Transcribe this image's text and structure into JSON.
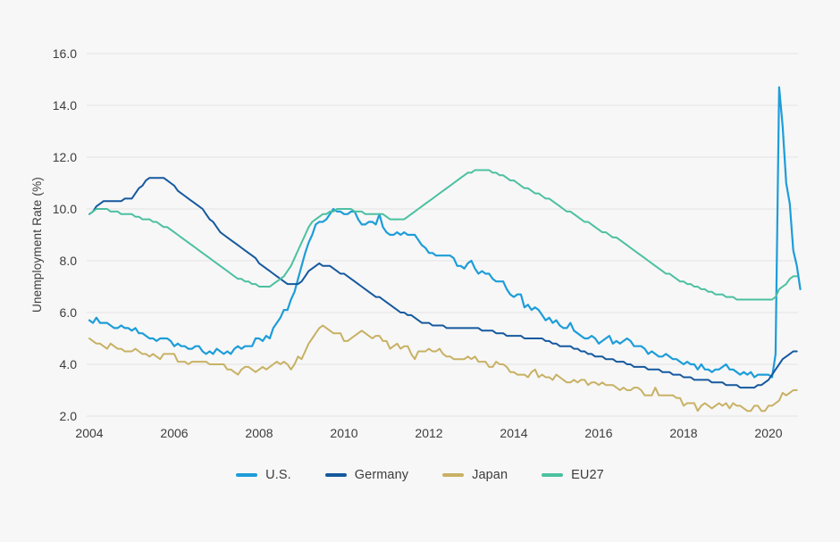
{
  "page": {
    "background": "#f7f7f7",
    "gridline_color": "#e3e3e3",
    "text_color": "#3c3c3c"
  },
  "chart_data": {
    "type": "line",
    "title": "",
    "xlabel": "",
    "ylabel": "Unemployment Rate (%)",
    "grid": "horizontal-only",
    "legend_position": "bottom-center",
    "x_start_year": 2004,
    "points_per_year": 12,
    "ylim": [
      2.0,
      16.0
    ],
    "xlim": [
      2004,
      2020.83
    ],
    "y_ticks": [
      {
        "value": 16,
        "label": "16.0"
      },
      {
        "value": 14,
        "label": "14.0"
      },
      {
        "value": 12,
        "label": "12.0"
      },
      {
        "value": 10,
        "label": "10.0"
      },
      {
        "value": 8,
        "label": "8.0"
      },
      {
        "value": 6,
        "label": "6.0"
      },
      {
        "value": 4,
        "label": "4.0"
      },
      {
        "value": 2,
        "label": "2.0"
      }
    ],
    "x_ticks": [
      {
        "value": 2004,
        "label": "2004"
      },
      {
        "value": 2006,
        "label": "2006"
      },
      {
        "value": 2008,
        "label": "2008"
      },
      {
        "value": 2010,
        "label": "2010"
      },
      {
        "value": 2012,
        "label": "2012"
      },
      {
        "value": 2014,
        "label": "2014"
      },
      {
        "value": 2016,
        "label": "2016"
      },
      {
        "value": 2018,
        "label": "2018"
      },
      {
        "value": 2020,
        "label": "2020"
      }
    ],
    "series": [
      {
        "name": "U.S.",
        "color": "#1d9dd9",
        "stroke_width": 2.2,
        "values": [
          5.7,
          5.6,
          5.8,
          5.6,
          5.6,
          5.6,
          5.5,
          5.4,
          5.4,
          5.5,
          5.4,
          5.4,
          5.3,
          5.4,
          5.2,
          5.2,
          5.1,
          5.0,
          5.0,
          4.9,
          5.0,
          5.0,
          5.0,
          4.9,
          4.7,
          4.8,
          4.7,
          4.7,
          4.6,
          4.6,
          4.7,
          4.7,
          4.5,
          4.4,
          4.5,
          4.4,
          4.6,
          4.5,
          4.4,
          4.5,
          4.4,
          4.6,
          4.7,
          4.6,
          4.7,
          4.7,
          4.7,
          5.0,
          5.0,
          4.9,
          5.1,
          5.0,
          5.4,
          5.6,
          5.8,
          6.1,
          6.1,
          6.5,
          6.8,
          7.3,
          7.8,
          8.3,
          8.7,
          9.0,
          9.4,
          9.5,
          9.5,
          9.6,
          9.8,
          10.0,
          9.9,
          9.9,
          9.8,
          9.8,
          9.9,
          9.9,
          9.6,
          9.4,
          9.4,
          9.5,
          9.5,
          9.4,
          9.8,
          9.3,
          9.1,
          9.0,
          9.0,
          9.1,
          9.0,
          9.1,
          9.0,
          9.0,
          9.0,
          8.8,
          8.6,
          8.5,
          8.3,
          8.3,
          8.2,
          8.2,
          8.2,
          8.2,
          8.2,
          8.1,
          7.8,
          7.8,
          7.7,
          7.9,
          8.0,
          7.7,
          7.5,
          7.6,
          7.5,
          7.5,
          7.3,
          7.2,
          7.2,
          7.2,
          6.9,
          6.7,
          6.6,
          6.7,
          6.7,
          6.2,
          6.3,
          6.1,
          6.2,
          6.1,
          5.9,
          5.7,
          5.8,
          5.6,
          5.7,
          5.5,
          5.4,
          5.4,
          5.6,
          5.3,
          5.2,
          5.1,
          5.0,
          5.0,
          5.1,
          5.0,
          4.8,
          4.9,
          5.0,
          5.1,
          4.8,
          4.9,
          4.8,
          4.9,
          5.0,
          4.9,
          4.7,
          4.7,
          4.7,
          4.6,
          4.4,
          4.5,
          4.4,
          4.3,
          4.3,
          4.4,
          4.3,
          4.2,
          4.2,
          4.1,
          4.0,
          4.1,
          4.0,
          4.0,
          3.8,
          4.0,
          3.8,
          3.8,
          3.7,
          3.8,
          3.8,
          3.9,
          4.0,
          3.8,
          3.8,
          3.7,
          3.6,
          3.7,
          3.6,
          3.7,
          3.5,
          3.6,
          3.6,
          3.6,
          3.6,
          3.5,
          4.4,
          14.7,
          13.2,
          11.0,
          10.2,
          8.4,
          7.8,
          6.9
        ]
      },
      {
        "name": "Germany",
        "color": "#15599e",
        "stroke_width": 2,
        "values": [
          9.8,
          9.9,
          10.1,
          10.2,
          10.3,
          10.3,
          10.3,
          10.3,
          10.3,
          10.3,
          10.4,
          10.4,
          10.4,
          10.6,
          10.8,
          10.9,
          11.1,
          11.2,
          11.2,
          11.2,
          11.2,
          11.2,
          11.1,
          11.0,
          10.9,
          10.7,
          10.6,
          10.5,
          10.4,
          10.3,
          10.2,
          10.1,
          10.0,
          9.8,
          9.6,
          9.5,
          9.3,
          9.1,
          9.0,
          8.9,
          8.8,
          8.7,
          8.6,
          8.5,
          8.4,
          8.3,
          8.2,
          8.1,
          7.9,
          7.8,
          7.7,
          7.6,
          7.5,
          7.4,
          7.3,
          7.2,
          7.1,
          7.1,
          7.1,
          7.1,
          7.2,
          7.4,
          7.6,
          7.7,
          7.8,
          7.9,
          7.8,
          7.8,
          7.8,
          7.7,
          7.6,
          7.5,
          7.5,
          7.4,
          7.3,
          7.2,
          7.1,
          7.0,
          6.9,
          6.8,
          6.7,
          6.6,
          6.6,
          6.5,
          6.4,
          6.3,
          6.2,
          6.1,
          6.0,
          6.0,
          5.9,
          5.9,
          5.8,
          5.7,
          5.6,
          5.6,
          5.6,
          5.5,
          5.5,
          5.5,
          5.5,
          5.4,
          5.4,
          5.4,
          5.4,
          5.4,
          5.4,
          5.4,
          5.4,
          5.4,
          5.4,
          5.3,
          5.3,
          5.3,
          5.3,
          5.2,
          5.2,
          5.2,
          5.1,
          5.1,
          5.1,
          5.1,
          5.1,
          5.0,
          5.0,
          5.0,
          5.0,
          5.0,
          5.0,
          4.9,
          4.9,
          4.8,
          4.8,
          4.7,
          4.7,
          4.7,
          4.7,
          4.6,
          4.6,
          4.5,
          4.5,
          4.4,
          4.4,
          4.3,
          4.3,
          4.3,
          4.2,
          4.2,
          4.2,
          4.1,
          4.1,
          4.1,
          4.0,
          4.0,
          3.9,
          3.9,
          3.9,
          3.9,
          3.8,
          3.8,
          3.8,
          3.8,
          3.7,
          3.7,
          3.7,
          3.6,
          3.6,
          3.6,
          3.5,
          3.5,
          3.5,
          3.4,
          3.4,
          3.4,
          3.4,
          3.4,
          3.3,
          3.3,
          3.3,
          3.3,
          3.2,
          3.2,
          3.2,
          3.2,
          3.1,
          3.1,
          3.1,
          3.1,
          3.1,
          3.2,
          3.2,
          3.3,
          3.4,
          3.6,
          3.8,
          4.0,
          4.2,
          4.3,
          4.4,
          4.5,
          4.5
        ]
      },
      {
        "name": "Japan",
        "color": "#c8b164",
        "stroke_width": 2,
        "values": [
          5.0,
          4.9,
          4.8,
          4.8,
          4.7,
          4.6,
          4.8,
          4.7,
          4.6,
          4.6,
          4.5,
          4.5,
          4.5,
          4.6,
          4.5,
          4.4,
          4.4,
          4.3,
          4.4,
          4.3,
          4.2,
          4.4,
          4.4,
          4.4,
          4.4,
          4.1,
          4.1,
          4.1,
          4.0,
          4.1,
          4.1,
          4.1,
          4.1,
          4.1,
          4.0,
          4.0,
          4.0,
          4.0,
          4.0,
          3.8,
          3.8,
          3.7,
          3.6,
          3.8,
          3.9,
          3.9,
          3.8,
          3.7,
          3.8,
          3.9,
          3.8,
          3.9,
          4.0,
          4.1,
          4.0,
          4.1,
          4.0,
          3.8,
          4.0,
          4.3,
          4.2,
          4.5,
          4.8,
          5.0,
          5.2,
          5.4,
          5.5,
          5.4,
          5.3,
          5.2,
          5.2,
          5.2,
          4.9,
          4.9,
          5.0,
          5.1,
          5.2,
          5.3,
          5.2,
          5.1,
          5.0,
          5.1,
          5.1,
          4.9,
          4.9,
          4.6,
          4.7,
          4.8,
          4.6,
          4.7,
          4.7,
          4.4,
          4.2,
          4.5,
          4.5,
          4.5,
          4.6,
          4.5,
          4.5,
          4.6,
          4.4,
          4.3,
          4.3,
          4.2,
          4.2,
          4.2,
          4.2,
          4.3,
          4.2,
          4.3,
          4.1,
          4.1,
          4.1,
          3.9,
          3.9,
          4.1,
          4.0,
          4.0,
          3.9,
          3.7,
          3.7,
          3.6,
          3.6,
          3.6,
          3.5,
          3.7,
          3.8,
          3.5,
          3.6,
          3.5,
          3.5,
          3.4,
          3.6,
          3.5,
          3.4,
          3.3,
          3.3,
          3.4,
          3.3,
          3.4,
          3.4,
          3.2,
          3.3,
          3.3,
          3.2,
          3.3,
          3.2,
          3.2,
          3.2,
          3.1,
          3.0,
          3.1,
          3.0,
          3.0,
          3.1,
          3.1,
          3.0,
          2.8,
          2.8,
          2.8,
          3.1,
          2.8,
          2.8,
          2.8,
          2.8,
          2.8,
          2.7,
          2.7,
          2.4,
          2.5,
          2.5,
          2.5,
          2.2,
          2.4,
          2.5,
          2.4,
          2.3,
          2.4,
          2.5,
          2.4,
          2.5,
          2.3,
          2.5,
          2.4,
          2.4,
          2.3,
          2.2,
          2.2,
          2.4,
          2.4,
          2.2,
          2.2,
          2.4,
          2.4,
          2.5,
          2.6,
          2.9,
          2.8,
          2.9,
          3.0,
          3.0
        ]
      },
      {
        "name": "EU27",
        "color": "#4cc0a0",
        "stroke_width": 2,
        "values": [
          9.8,
          9.9,
          10.0,
          10.0,
          10.0,
          10.0,
          9.9,
          9.9,
          9.9,
          9.8,
          9.8,
          9.8,
          9.8,
          9.7,
          9.7,
          9.6,
          9.6,
          9.6,
          9.5,
          9.5,
          9.4,
          9.3,
          9.3,
          9.2,
          9.1,
          9.0,
          8.9,
          8.8,
          8.7,
          8.6,
          8.5,
          8.4,
          8.3,
          8.2,
          8.1,
          8.0,
          7.9,
          7.8,
          7.7,
          7.6,
          7.5,
          7.4,
          7.3,
          7.3,
          7.2,
          7.2,
          7.1,
          7.1,
          7.0,
          7.0,
          7.0,
          7.0,
          7.1,
          7.2,
          7.3,
          7.4,
          7.6,
          7.8,
          8.1,
          8.4,
          8.7,
          9.0,
          9.3,
          9.5,
          9.6,
          9.7,
          9.8,
          9.8,
          9.9,
          9.9,
          10.0,
          10.0,
          10.0,
          10.0,
          10.0,
          9.9,
          9.9,
          9.9,
          9.8,
          9.8,
          9.8,
          9.8,
          9.8,
          9.8,
          9.7,
          9.6,
          9.6,
          9.6,
          9.6,
          9.6,
          9.7,
          9.8,
          9.9,
          10.0,
          10.1,
          10.2,
          10.3,
          10.4,
          10.5,
          10.6,
          10.7,
          10.8,
          10.9,
          11.0,
          11.1,
          11.2,
          11.3,
          11.4,
          11.4,
          11.5,
          11.5,
          11.5,
          11.5,
          11.5,
          11.4,
          11.4,
          11.3,
          11.3,
          11.2,
          11.1,
          11.1,
          11.0,
          10.9,
          10.8,
          10.8,
          10.7,
          10.6,
          10.6,
          10.5,
          10.4,
          10.4,
          10.3,
          10.2,
          10.1,
          10.0,
          9.9,
          9.9,
          9.8,
          9.7,
          9.6,
          9.5,
          9.5,
          9.4,
          9.3,
          9.2,
          9.1,
          9.1,
          9.0,
          8.9,
          8.9,
          8.8,
          8.7,
          8.6,
          8.5,
          8.4,
          8.3,
          8.2,
          8.1,
          8.0,
          7.9,
          7.8,
          7.7,
          7.6,
          7.5,
          7.5,
          7.4,
          7.3,
          7.2,
          7.2,
          7.1,
          7.1,
          7.0,
          7.0,
          6.9,
          6.9,
          6.8,
          6.8,
          6.7,
          6.7,
          6.7,
          6.6,
          6.6,
          6.6,
          6.5,
          6.5,
          6.5,
          6.5,
          6.5,
          6.5,
          6.5,
          6.5,
          6.5,
          6.5,
          6.5,
          6.6,
          6.9,
          7.0,
          7.1,
          7.3,
          7.4,
          7.4
        ]
      }
    ]
  }
}
